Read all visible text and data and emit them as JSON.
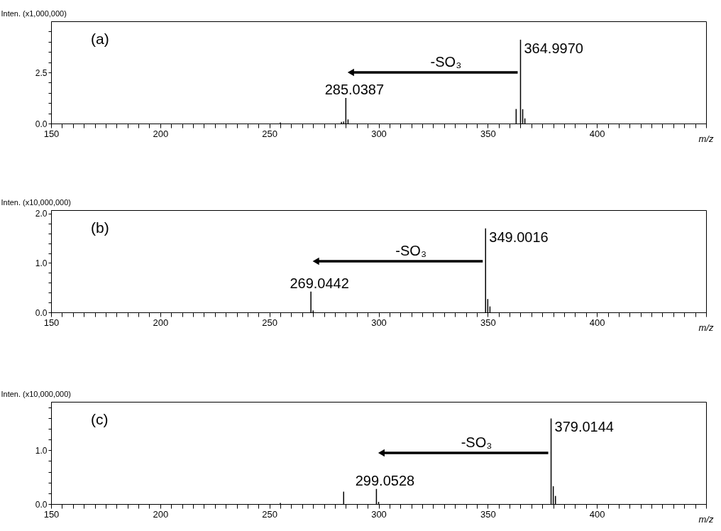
{
  "chart_data": [
    {
      "type": "bar",
      "ylabel": "Inten.  (x1,000,000)",
      "xlabel": "m/z",
      "color": "#000000",
      "x": [
        255,
        283,
        284,
        285,
        286,
        363,
        365,
        366,
        367
      ],
      "values": [
        0.05,
        0.08,
        0.1,
        1.25,
        0.2,
        0.71,
        4.1,
        0.7,
        0.25
      ],
      "xlim": [
        150,
        450
      ],
      "ylim": [
        0,
        5
      ],
      "xticks": [
        150,
        {
          "value": 155,
          "label": null
        },
        {
          "value": 160,
          "label": null
        },
        {
          "value": 165,
          "label": null
        },
        {
          "value": 170,
          "label": null
        },
        {
          "value": 175,
          "label": null
        },
        {
          "value": 180,
          "label": null
        },
        {
          "value": 185,
          "label": null
        },
        {
          "value": 190,
          "label": null
        },
        {
          "value": 195,
          "label": null
        },
        200,
        {
          "value": 205,
          "label": null
        },
        {
          "value": 210,
          "label": null
        },
        {
          "value": 215,
          "label": null
        },
        {
          "value": 220,
          "label": null
        },
        {
          "value": 225,
          "label": null
        },
        {
          "value": 230,
          "label": null
        },
        {
          "value": 235,
          "label": null
        },
        {
          "value": 240,
          "label": null
        },
        {
          "value": 245,
          "label": null
        },
        250,
        {
          "value": 255,
          "label": null
        },
        {
          "value": 260,
          "label": null
        },
        {
          "value": 265,
          "label": null
        },
        {
          "value": 270,
          "label": null
        },
        {
          "value": 275,
          "label": null
        },
        {
          "value": 280,
          "label": null
        },
        {
          "value": 285,
          "label": null
        },
        {
          "value": 290,
          "label": null
        },
        {
          "value": 295,
          "label": null
        },
        300,
        {
          "value": 305,
          "label": null
        },
        {
          "value": 310,
          "label": null
        },
        {
          "value": 315,
          "label": null
        },
        {
          "value": 320,
          "label": null
        },
        {
          "value": 325,
          "label": null
        },
        {
          "value": 330,
          "label": null
        },
        {
          "value": 335,
          "label": null
        },
        {
          "value": 340,
          "label": null
        },
        {
          "value": 345,
          "label": null
        },
        350,
        {
          "value": 355,
          "label": null
        },
        {
          "value": 360,
          "label": null
        },
        {
          "value": 365,
          "label": null
        },
        {
          "value": 370,
          "label": null
        },
        {
          "value": 375,
          "label": null
        },
        {
          "value": 380,
          "label": null
        },
        {
          "value": 385,
          "label": null
        },
        {
          "value": 390,
          "label": null
        },
        {
          "value": 395,
          "label": null
        },
        400,
        {
          "value": 405,
          "label": null
        },
        {
          "value": 410,
          "label": null
        },
        {
          "value": 415,
          "label": null
        },
        {
          "value": 420,
          "label": null
        },
        {
          "value": 425,
          "label": null
        },
        {
          "value": 430,
          "label": null
        },
        {
          "value": 435,
          "label": null
        },
        {
          "value": 440,
          "label": null
        },
        {
          "value": 445,
          "label": null
        },
        {
          "value": 450,
          "label": null
        }
      ],
      "yticks": [
        {
          "value": 0,
          "label": "0.0"
        },
        {
          "value": 0.5,
          "label": null
        },
        {
          "value": 1,
          "label": null
        },
        {
          "value": 1.5,
          "label": null
        },
        {
          "value": 2,
          "label": null
        },
        {
          "value": 2.5,
          "label": "2.5"
        },
        {
          "value": 3,
          "label": null
        },
        {
          "value": 3.5,
          "label": null
        },
        {
          "value": 4,
          "label": null
        },
        {
          "value": 4.5,
          "label": null
        }
      ],
      "annotations": [
        "(a)",
        {
          "text": "364.9970",
          "x": 365,
          "y": 4.1
        },
        {
          "text": "285.0387",
          "x": 285,
          "y": 1.25
        },
        "-SO₃"
      ]
    },
    {
      "type": "bar",
      "ylabel": "Inten.  (x10,000,000)",
      "xlabel": "m/z",
      "color": "#000000",
      "x": [
        269,
        270,
        349,
        350,
        351
      ],
      "values": [
        0.42,
        0.04,
        1.7,
        0.27,
        0.12
      ],
      "xlim": [
        150,
        450
      ],
      "ylim": [
        0,
        2.07
      ],
      "xticks": [
        150,
        {
          "value": 155,
          "label": null
        },
        {
          "value": 160,
          "label": null
        },
        {
          "value": 165,
          "label": null
        },
        {
          "value": 170,
          "label": null
        },
        {
          "value": 175,
          "label": null
        },
        {
          "value": 180,
          "label": null
        },
        {
          "value": 185,
          "label": null
        },
        {
          "value": 190,
          "label": null
        },
        {
          "value": 195,
          "label": null
        },
        200,
        {
          "value": 205,
          "label": null
        },
        {
          "value": 210,
          "label": null
        },
        {
          "value": 215,
          "label": null
        },
        {
          "value": 220,
          "label": null
        },
        {
          "value": 225,
          "label": null
        },
        {
          "value": 230,
          "label": null
        },
        {
          "value": 235,
          "label": null
        },
        {
          "value": 240,
          "label": null
        },
        {
          "value": 245,
          "label": null
        },
        250,
        {
          "value": 255,
          "label": null
        },
        {
          "value": 260,
          "label": null
        },
        {
          "value": 265,
          "label": null
        },
        {
          "value": 270,
          "label": null
        },
        {
          "value": 275,
          "label": null
        },
        {
          "value": 280,
          "label": null
        },
        {
          "value": 285,
          "label": null
        },
        {
          "value": 290,
          "label": null
        },
        {
          "value": 295,
          "label": null
        },
        300,
        {
          "value": 305,
          "label": null
        },
        {
          "value": 310,
          "label": null
        },
        {
          "value": 315,
          "label": null
        },
        {
          "value": 320,
          "label": null
        },
        {
          "value": 325,
          "label": null
        },
        {
          "value": 330,
          "label": null
        },
        {
          "value": 335,
          "label": null
        },
        {
          "value": 340,
          "label": null
        },
        {
          "value": 345,
          "label": null
        },
        350,
        {
          "value": 355,
          "label": null
        },
        {
          "value": 360,
          "label": null
        },
        {
          "value": 365,
          "label": null
        },
        {
          "value": 370,
          "label": null
        },
        {
          "value": 375,
          "label": null
        },
        {
          "value": 380,
          "label": null
        },
        {
          "value": 385,
          "label": null
        },
        {
          "value": 390,
          "label": null
        },
        {
          "value": 395,
          "label": null
        },
        400,
        {
          "value": 405,
          "label": null
        },
        {
          "value": 410,
          "label": null
        },
        {
          "value": 415,
          "label": null
        },
        {
          "value": 420,
          "label": null
        },
        {
          "value": 425,
          "label": null
        },
        {
          "value": 430,
          "label": null
        },
        {
          "value": 435,
          "label": null
        },
        {
          "value": 440,
          "label": null
        },
        {
          "value": 445,
          "label": null
        },
        {
          "value": 450,
          "label": null
        }
      ],
      "yticks": [
        {
          "value": 0,
          "label": "0.0"
        },
        {
          "value": 0.2,
          "label": null
        },
        {
          "value": 0.4,
          "label": null
        },
        {
          "value": 0.6,
          "label": null
        },
        {
          "value": 0.8,
          "label": null
        },
        {
          "value": 1,
          "label": "1.0"
        },
        {
          "value": 1.2,
          "label": null
        },
        {
          "value": 1.4,
          "label": null
        },
        {
          "value": 1.6,
          "label": null
        },
        {
          "value": 1.8,
          "label": null
        },
        {
          "value": 2,
          "label": "2.0"
        }
      ],
      "annotations": [
        "(b)",
        {
          "text": "349.0016",
          "x": 349,
          "y": 1.7
        },
        {
          "text": "269.0442",
          "x": 269,
          "y": 0.42
        },
        "-SO₃"
      ]
    },
    {
      "type": "bar",
      "ylabel": "Inten.  (x10,000,000)",
      "xlabel": "m/z",
      "color": "#000000",
      "x": [
        255,
        284,
        299,
        300,
        379,
        380,
        381
      ],
      "values": [
        0.02,
        0.23,
        0.28,
        0.04,
        1.59,
        0.33,
        0.15
      ],
      "xlim": [
        150,
        450
      ],
      "ylim": [
        0,
        1.9
      ],
      "xticks": [
        150,
        {
          "value": 155,
          "label": null
        },
        {
          "value": 160,
          "label": null
        },
        {
          "value": 165,
          "label": null
        },
        {
          "value": 170,
          "label": null
        },
        {
          "value": 175,
          "label": null
        },
        {
          "value": 180,
          "label": null
        },
        {
          "value": 185,
          "label": null
        },
        {
          "value": 190,
          "label": null
        },
        {
          "value": 195,
          "label": null
        },
        200,
        {
          "value": 205,
          "label": null
        },
        {
          "value": 210,
          "label": null
        },
        {
          "value": 215,
          "label": null
        },
        {
          "value": 220,
          "label": null
        },
        {
          "value": 225,
          "label": null
        },
        {
          "value": 230,
          "label": null
        },
        {
          "value": 235,
          "label": null
        },
        {
          "value": 240,
          "label": null
        },
        {
          "value": 245,
          "label": null
        },
        250,
        {
          "value": 255,
          "label": null
        },
        {
          "value": 260,
          "label": null
        },
        {
          "value": 265,
          "label": null
        },
        {
          "value": 270,
          "label": null
        },
        {
          "value": 275,
          "label": null
        },
        {
          "value": 280,
          "label": null
        },
        {
          "value": 285,
          "label": null
        },
        {
          "value": 290,
          "label": null
        },
        {
          "value": 295,
          "label": null
        },
        300,
        {
          "value": 305,
          "label": null
        },
        {
          "value": 310,
          "label": null
        },
        {
          "value": 315,
          "label": null
        },
        {
          "value": 320,
          "label": null
        },
        {
          "value": 325,
          "label": null
        },
        {
          "value": 330,
          "label": null
        },
        {
          "value": 335,
          "label": null
        },
        {
          "value": 340,
          "label": null
        },
        {
          "value": 345,
          "label": null
        },
        350,
        {
          "value": 355,
          "label": null
        },
        {
          "value": 360,
          "label": null
        },
        {
          "value": 365,
          "label": null
        },
        {
          "value": 370,
          "label": null
        },
        {
          "value": 375,
          "label": null
        },
        {
          "value": 380,
          "label": null
        },
        {
          "value": 385,
          "label": null
        },
        {
          "value": 390,
          "label": null
        },
        {
          "value": 395,
          "label": null
        },
        400,
        {
          "value": 405,
          "label": null
        },
        {
          "value": 410,
          "label": null
        },
        {
          "value": 415,
          "label": null
        },
        {
          "value": 420,
          "label": null
        },
        {
          "value": 425,
          "label": null
        },
        {
          "value": 430,
          "label": null
        },
        {
          "value": 435,
          "label": null
        },
        {
          "value": 440,
          "label": null
        },
        {
          "value": 445,
          "label": null
        },
        {
          "value": 450,
          "label": null
        }
      ],
      "yticks": [
        {
          "value": 0,
          "label": "0.0"
        },
        {
          "value": 0.2,
          "label": null
        },
        {
          "value": 0.4,
          "label": null
        },
        {
          "value": 0.6,
          "label": null
        },
        {
          "value": 0.8,
          "label": null
        },
        {
          "value": 1,
          "label": "1.0"
        },
        {
          "value": 1.2,
          "label": null
        },
        {
          "value": 1.4,
          "label": null
        },
        {
          "value": 1.6,
          "label": null
        },
        {
          "value": 1.8,
          "label": null
        }
      ],
      "annotations": [
        "(c)",
        {
          "text": "379.0144",
          "x": 379,
          "y": 1.59
        },
        {
          "text": "299.0528",
          "x": 299,
          "y": 0.28
        },
        "-SO₃"
      ]
    }
  ]
}
